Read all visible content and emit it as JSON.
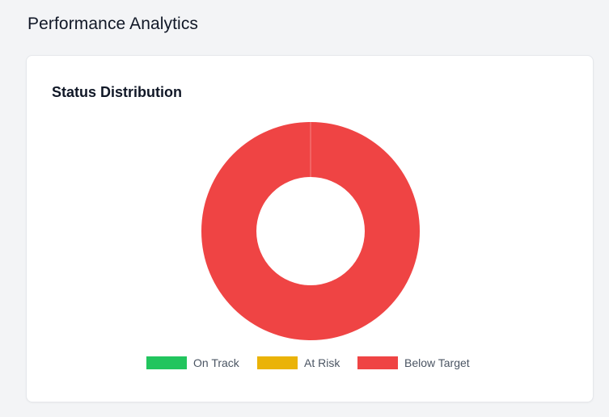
{
  "page": {
    "title": "Performance Analytics"
  },
  "card": {
    "title": "Status Distribution"
  },
  "chart_data": {
    "type": "pie",
    "title": "Status Distribution",
    "donut": true,
    "categories": [
      "On Track",
      "At Risk",
      "Below Target"
    ],
    "values": [
      0,
      0,
      1
    ],
    "colors": [
      "#22c55e",
      "#eab308",
      "#ef4444"
    ],
    "legend_position": "bottom"
  }
}
